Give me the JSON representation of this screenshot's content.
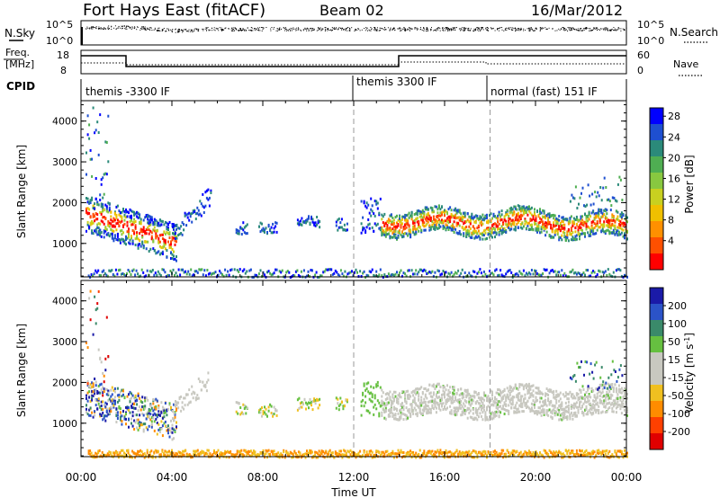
{
  "header": {
    "station": "Fort Hays East (fitACF)",
    "beam": "Beam 02",
    "date": "16/Mar/2012"
  },
  "noise_panel": {
    "left_label": "N.Sky",
    "right_label": "N.Search",
    "tick_top": "10^5",
    "tick_bottom": "10^0"
  },
  "freq_panel": {
    "left_label_1": "Freq.",
    "left_label_2": "[MHz]",
    "right_label": "Nave",
    "left_ticks": [
      "18",
      "8"
    ],
    "right_ticks": [
      "60",
      "0"
    ]
  },
  "cpid": {
    "label": "CPID",
    "segments": [
      {
        "start_hour": 0,
        "label": "themis -3300 IF"
      },
      {
        "start_hour": 12,
        "label": "themis 3300 IF"
      },
      {
        "start_hour": 18,
        "label": "normal (fast) 151 IF"
      }
    ]
  },
  "chart_data": [
    {
      "type": "heatmap",
      "name": "power",
      "ylabel": "Slant Range [km]",
      "xlabel": "",
      "x_range_hours": [
        0,
        24
      ],
      "ylim": [
        180,
        4500
      ],
      "yticks": [
        "1000",
        "2000",
        "3000",
        "4000"
      ],
      "colorbar": {
        "label": "Power [dB]",
        "ticks": [
          "4",
          "8",
          "12",
          "16",
          "20",
          "24",
          "28"
        ],
        "colors": [
          "#0000ff",
          "#1e4fd0",
          "#2b8a7a",
          "#4fae52",
          "#88c840",
          "#c8d020",
          "#f0c000",
          "#ff9000",
          "#ff5000",
          "#ff0000"
        ]
      }
    },
    {
      "type": "heatmap",
      "name": "velocity",
      "ylabel": "Slant Range [km]",
      "xlabel": "Time UT",
      "x_range_hours": [
        0,
        24
      ],
      "ylim": [
        180,
        4500
      ],
      "yticks": [
        "1000",
        "2000",
        "3000",
        "4000"
      ],
      "xticks": [
        "00:00",
        "04:00",
        "08:00",
        "12:00",
        "16:00",
        "20:00",
        "00:00"
      ],
      "colorbar": {
        "label": "Velocity [m s-1]",
        "ticks": [
          "200",
          "100",
          "50",
          "15",
          "-15",
          "-50",
          "-100",
          "-200"
        ],
        "colors": [
          "#1a1aa8",
          "#2b53c8",
          "#3a8a6a",
          "#66c040",
          "#c8c8c0",
          "#c8c8c0",
          "#f0c020",
          "#ff8c00",
          "#ff4000",
          "#e00000"
        ]
      }
    }
  ]
}
